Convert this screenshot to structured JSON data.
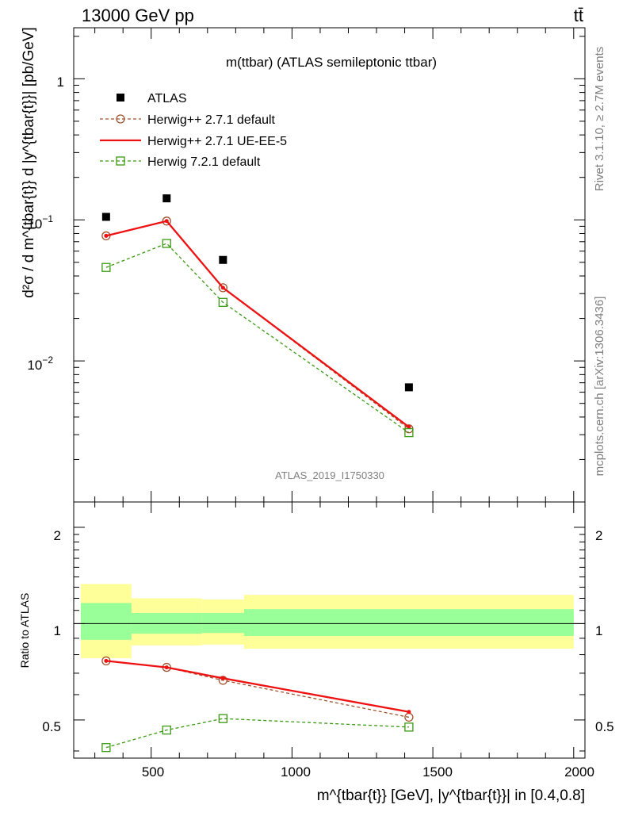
{
  "header": {
    "left": "13000 GeV pp",
    "right": "tt̄",
    "analysis_id": "ATLAS_2019_I1750330",
    "side_rivet": "Rivet 3.1.10, ≥ 2.7M events",
    "side_mcplots": "mcplots.cern.ch [arXiv:1306.3436]"
  },
  "legend": {
    "title": "m(ttbar) (ATLAS semileptonic ttbar)",
    "entries": [
      "ATLAS",
      "Herwig++ 2.7.1 default",
      "Herwig++ 2.7.1 UE-EE-5",
      "Herwig 7.2.1 default"
    ]
  },
  "axes": {
    "main_ylabel": "d²σ / d m^{tbar{t}} d |y^{tbar{t}}| [pb/GeV]",
    "main_ytick_labels": [
      "1",
      "10",
      "10"
    ],
    "main_ytick_exps": [
      "",
      "−1",
      "−2"
    ],
    "ratio_ylabel": "Ratio to ATLAS",
    "ratio_ytick_labels": [
      "0.5",
      "1",
      "2"
    ],
    "xtick_labels": [
      "500",
      "1000",
      "1500",
      "2000"
    ],
    "xlabel": "m^{tbar{t}} [GeV], |y^{tbar{t}}| in [0.4,0.8]"
  },
  "colors": {
    "atlas": "#000000",
    "herwigpp_default": "#a0522d",
    "herwigpp_ueee5": "#ee1111",
    "herwig7": "#3a9a12",
    "band_inner": "#99ff99",
    "band_outer": "#ffff99"
  },
  "chart_data": {
    "type": "scatter",
    "x_edges": [
      250,
      430,
      680,
      830,
      2000
    ],
    "x": [
      340,
      555,
      755,
      1415
    ],
    "xlim": [
      225,
      2040
    ],
    "main": {
      "yscale": "log",
      "ylim": [
        0.001,
        2.3
      ],
      "series": [
        {
          "name": "ATLAS",
          "values": [
            0.105,
            0.142,
            0.052,
            0.0065
          ]
        },
        {
          "name": "Herwig++ 2.7.1 default",
          "values": [
            0.077,
            0.098,
            0.033,
            0.0033
          ]
        },
        {
          "name": "Herwig++ 2.7.1 UE-EE-5",
          "values": [
            0.077,
            0.098,
            0.033,
            0.0034
          ]
        },
        {
          "name": "Herwig 7.2.1 default",
          "values": [
            0.046,
            0.068,
            0.026,
            0.0031
          ]
        }
      ]
    },
    "ratio": {
      "yscale": "log",
      "ylim": [
        0.38,
        2.4
      ],
      "reference": 1,
      "band_inner": [
        [
          0.89,
          1.16
        ],
        [
          0.93,
          1.08
        ],
        [
          0.935,
          1.08
        ],
        [
          0.915,
          1.11
        ]
      ],
      "band_outer": [
        [
          0.78,
          1.33
        ],
        [
          0.855,
          1.2
        ],
        [
          0.86,
          1.19
        ],
        [
          0.835,
          1.23
        ]
      ],
      "series": [
        {
          "name": "Herwig++ 2.7.1 default",
          "values": [
            0.765,
            0.73,
            0.665,
            0.51
          ]
        },
        {
          "name": "Herwig++ 2.7.1 UE-EE-5",
          "values": [
            0.765,
            0.73,
            0.675,
            0.53
          ]
        },
        {
          "name": "Herwig 7.2.1 default",
          "values": [
            0.41,
            0.465,
            0.505,
            0.475
          ]
        }
      ]
    }
  }
}
